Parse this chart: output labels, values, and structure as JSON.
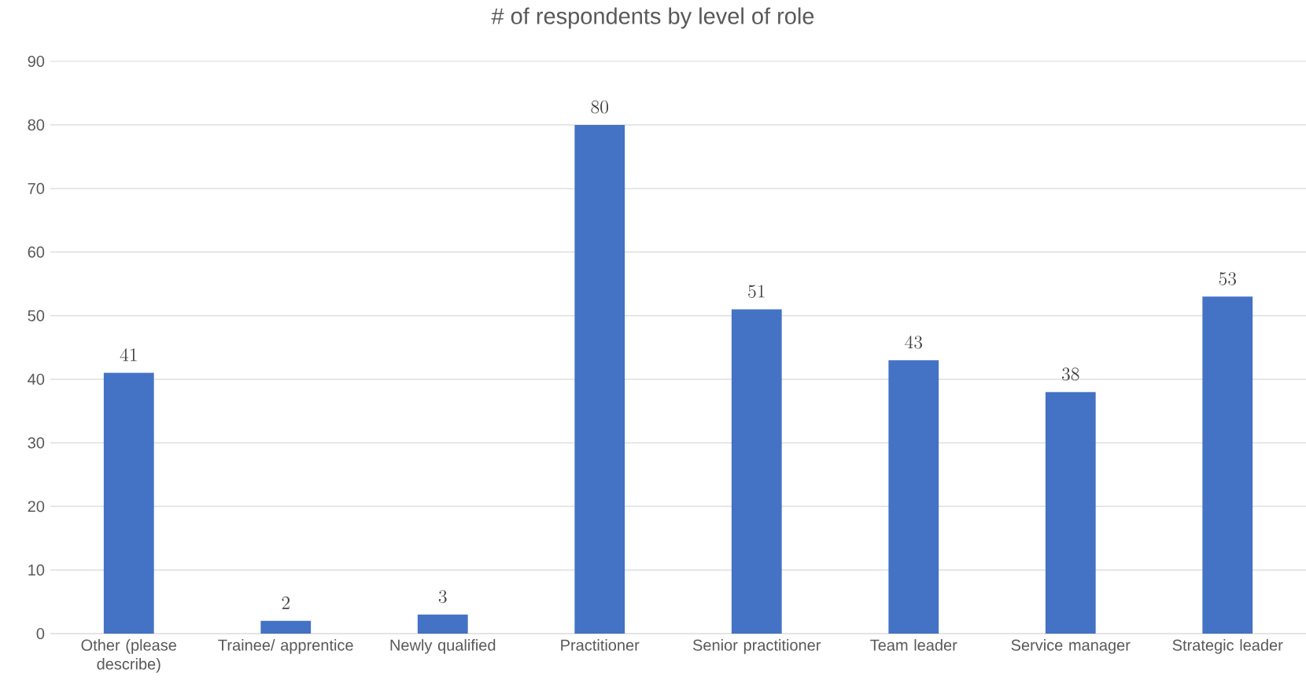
{
  "chart_data": {
    "type": "bar",
    "title": "# of respondents by level of role",
    "categories": [
      "Other (please describe)",
      "Trainee/ apprentice",
      "Newly qualified",
      "Practitioner",
      "Senior practitioner",
      "Team leader",
      "Service manager",
      "Strategic leader"
    ],
    "values": [
      41,
      2,
      3,
      80,
      51,
      43,
      38,
      53
    ],
    "color": "#4472c4",
    "ylim": [
      0,
      90
    ],
    "yticks": [
      0,
      10,
      20,
      30,
      40,
      50,
      60,
      70,
      80,
      90
    ],
    "grid": "y",
    "data_labels": true
  }
}
